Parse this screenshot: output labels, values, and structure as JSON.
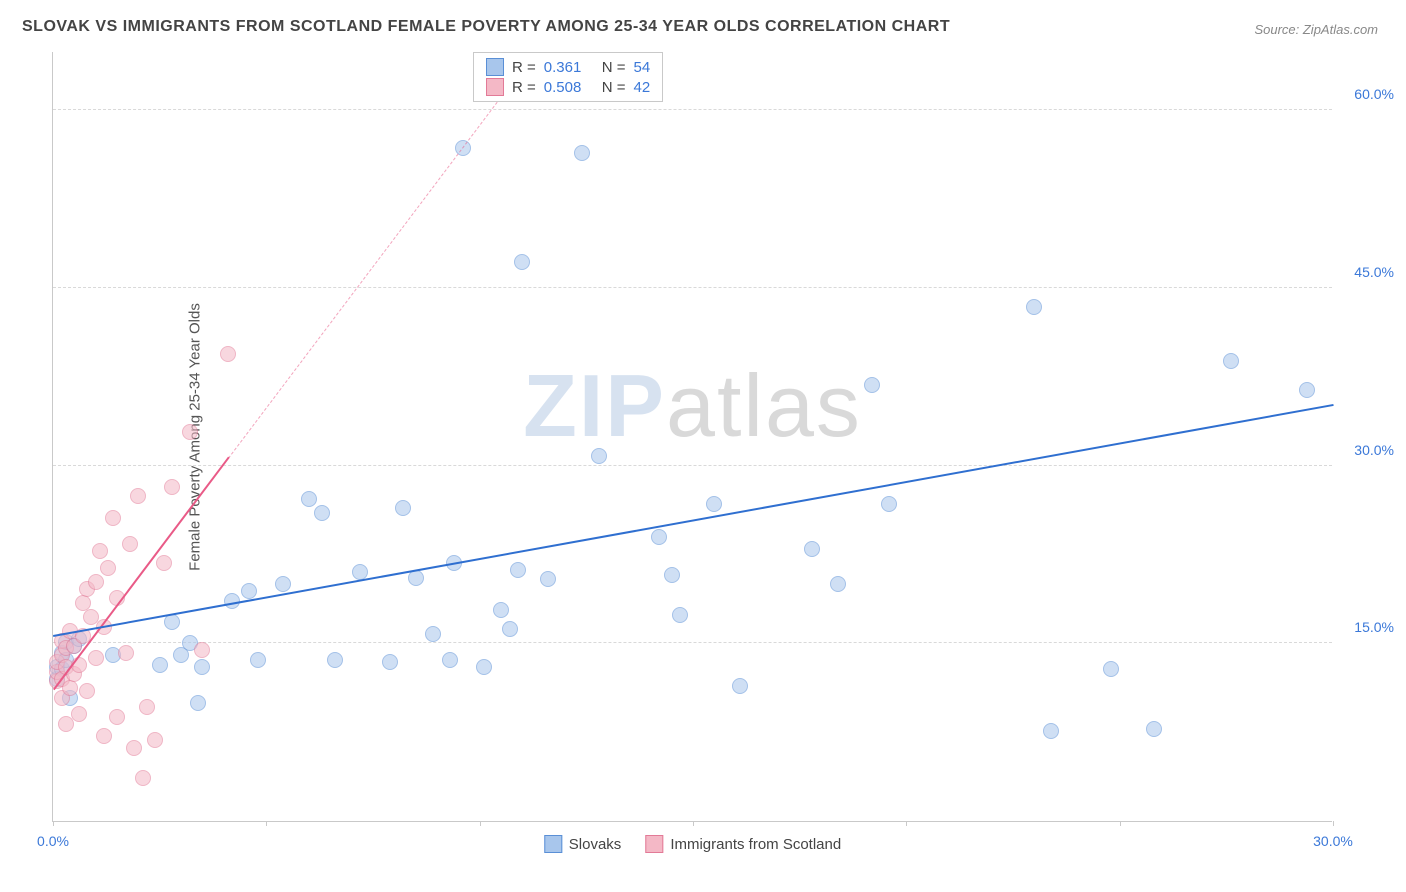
{
  "title": "SLOVAK VS IMMIGRANTS FROM SCOTLAND FEMALE POVERTY AMONG 25-34 YEAR OLDS CORRELATION CHART",
  "source": "Source: ZipAtlas.com",
  "ylabel": "Female Poverty Among 25-34 Year Olds",
  "watermark": {
    "zip": "ZIP",
    "atlas": "atlas"
  },
  "chart": {
    "type": "scatter",
    "xlim": [
      0,
      30
    ],
    "ylim": [
      0,
      65
    ],
    "xticks": [
      {
        "v": 0,
        "label": "0.0%"
      },
      {
        "v": 30,
        "label": "30.0%"
      }
    ],
    "xtick_marks": [
      0,
      5,
      10,
      15,
      20,
      25,
      30
    ],
    "yticks": [
      {
        "v": 15,
        "label": "15.0%"
      },
      {
        "v": 30,
        "label": "30.0%"
      },
      {
        "v": 45,
        "label": "45.0%"
      },
      {
        "v": 60,
        "label": "60.0%"
      }
    ],
    "xtick_color": "#3b78d8",
    "ytick_color": "#3b78d8",
    "grid_color": "#d9d9d9",
    "background_color": "#ffffff",
    "marker_radius": 8,
    "marker_opacity": 0.55,
    "series": [
      {
        "name": "Slovaks",
        "color_fill": "#a8c6ec",
        "color_stroke": "#5a8fd6",
        "trend_color": "#2f6fd0",
        "R": "0.361",
        "N": "54",
        "trend": {
          "x1": 0,
          "y1": 15.5,
          "x2": 30,
          "y2": 35.0
        },
        "points": [
          [
            0.1,
            12.0
          ],
          [
            0.1,
            13.0
          ],
          [
            0.2,
            14.2
          ],
          [
            0.2,
            12.8
          ],
          [
            0.3,
            13.6
          ],
          [
            0.3,
            15.1
          ],
          [
            0.4,
            10.4
          ],
          [
            0.5,
            14.8
          ],
          [
            0.6,
            15.4
          ],
          [
            1.4,
            14.0
          ],
          [
            2.5,
            13.2
          ],
          [
            2.8,
            16.8
          ],
          [
            3.0,
            14.0
          ],
          [
            3.2,
            15.0
          ],
          [
            3.4,
            10.0
          ],
          [
            3.5,
            13.0
          ],
          [
            4.2,
            18.6
          ],
          [
            4.6,
            19.4
          ],
          [
            4.8,
            13.6
          ],
          [
            5.4,
            20.0
          ],
          [
            6.0,
            27.2
          ],
          [
            6.3,
            26.0
          ],
          [
            6.6,
            13.6
          ],
          [
            7.2,
            21.0
          ],
          [
            7.9,
            13.4
          ],
          [
            8.2,
            26.4
          ],
          [
            8.5,
            20.5
          ],
          [
            8.9,
            15.8
          ],
          [
            9.3,
            13.6
          ],
          [
            9.4,
            21.8
          ],
          [
            9.6,
            56.8
          ],
          [
            10.1,
            13.0
          ],
          [
            10.5,
            17.8
          ],
          [
            10.7,
            16.2
          ],
          [
            10.9,
            21.2
          ],
          [
            11.0,
            47.2
          ],
          [
            11.6,
            20.4
          ],
          [
            12.4,
            56.4
          ],
          [
            12.8,
            30.8
          ],
          [
            14.2,
            24.0
          ],
          [
            14.5,
            20.8
          ],
          [
            14.7,
            17.4
          ],
          [
            15.5,
            26.8
          ],
          [
            16.1,
            11.4
          ],
          [
            17.8,
            23.0
          ],
          [
            18.4,
            20.0
          ],
          [
            19.2,
            36.8
          ],
          [
            19.6,
            26.8
          ],
          [
            23.0,
            43.4
          ],
          [
            23.4,
            7.6
          ],
          [
            24.8,
            12.8
          ],
          [
            25.8,
            7.8
          ],
          [
            27.6,
            38.8
          ],
          [
            29.4,
            36.4
          ]
        ]
      },
      {
        "name": "Immigrants from Scotland",
        "color_fill": "#f4b8c6",
        "color_stroke": "#e27a97",
        "trend_color": "#e95a87",
        "R": "0.508",
        "N": "42",
        "trend_solid": {
          "x1": 0,
          "y1": 11.0,
          "x2": 4.1,
          "y2": 30.6
        },
        "trend_dashed": {
          "x1": 4.1,
          "y1": 30.6,
          "x2": 11.1,
          "y2": 64.0
        },
        "points": [
          [
            0.1,
            11.8
          ],
          [
            0.1,
            12.6
          ],
          [
            0.1,
            13.4
          ],
          [
            0.2,
            12.0
          ],
          [
            0.2,
            14.0
          ],
          [
            0.2,
            10.4
          ],
          [
            0.2,
            15.2
          ],
          [
            0.3,
            13.0
          ],
          [
            0.3,
            8.2
          ],
          [
            0.3,
            14.6
          ],
          [
            0.4,
            11.2
          ],
          [
            0.4,
            16.0
          ],
          [
            0.5,
            12.4
          ],
          [
            0.5,
            14.8
          ],
          [
            0.6,
            9.0
          ],
          [
            0.6,
            13.2
          ],
          [
            0.7,
            15.6
          ],
          [
            0.7,
            18.4
          ],
          [
            0.8,
            11.0
          ],
          [
            0.8,
            19.6
          ],
          [
            0.9,
            17.2
          ],
          [
            1.0,
            13.8
          ],
          [
            1.0,
            20.2
          ],
          [
            1.1,
            22.8
          ],
          [
            1.2,
            7.2
          ],
          [
            1.2,
            16.4
          ],
          [
            1.3,
            21.4
          ],
          [
            1.4,
            25.6
          ],
          [
            1.5,
            8.8
          ],
          [
            1.5,
            18.8
          ],
          [
            1.7,
            14.2
          ],
          [
            1.8,
            23.4
          ],
          [
            1.9,
            6.2
          ],
          [
            2.0,
            27.4
          ],
          [
            2.1,
            3.6
          ],
          [
            2.2,
            9.6
          ],
          [
            2.4,
            6.8
          ],
          [
            2.6,
            21.8
          ],
          [
            2.8,
            28.2
          ],
          [
            3.2,
            32.8
          ],
          [
            3.5,
            14.4
          ],
          [
            4.1,
            39.4
          ]
        ]
      }
    ],
    "stat_box": {
      "r_label": "R  =",
      "n_label": "N  =",
      "value_color": "#3b78d8",
      "label_color": "#444"
    },
    "bottom_legend": {
      "items": [
        "Slovaks",
        "Immigrants from Scotland"
      ]
    }
  }
}
